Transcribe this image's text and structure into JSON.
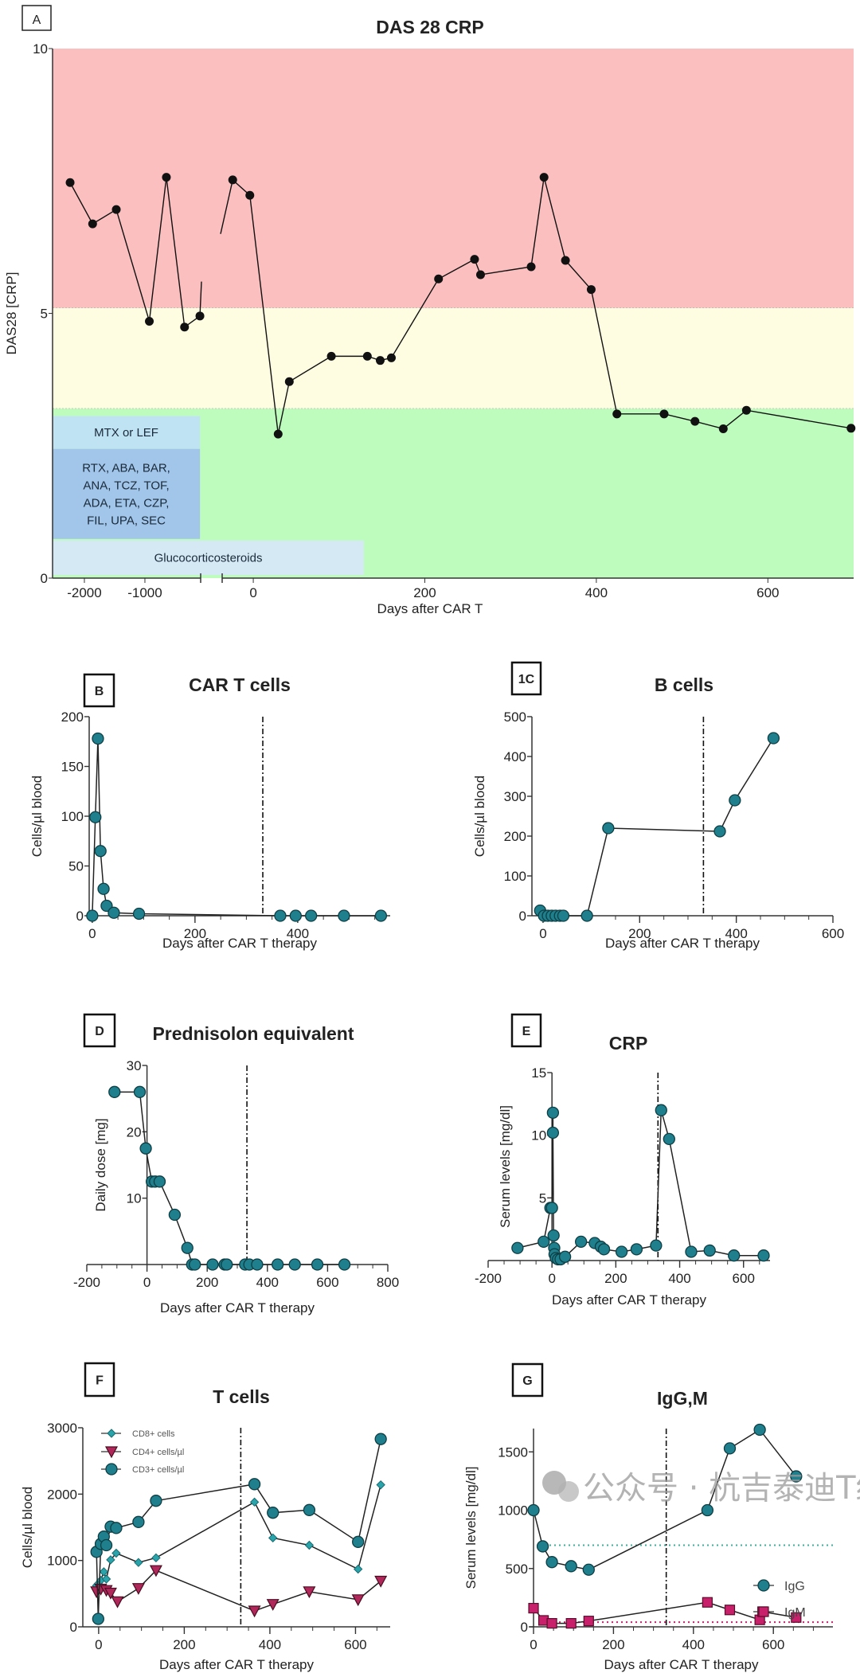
{
  "colors": {
    "teal": "#1f7f8c",
    "teal_edge": "#0e3f45",
    "pink": "#c8206a",
    "cd8": "#2aa3ab",
    "black": "#111111"
  },
  "watermark": "公众号 · 杭吉泰迪T细胞",
  "chart_data": [
    {
      "panel_label": "A",
      "type": "line",
      "title": "DAS 28 CRP",
      "xlabel": "Days after CAR T",
      "ylabel": "DAS28 [CRP]",
      "ylim": [
        0,
        10
      ],
      "yticks": [
        0,
        5,
        10
      ],
      "xticks": [
        -2000,
        -1000,
        0,
        200,
        400,
        600
      ],
      "x_axis_break": true,
      "x_axis_segments": [
        [
          -2526,
          -26
        ],
        [
          -40,
          700
        ]
      ],
      "zones": [
        {
          "from": 5.1,
          "to": 10,
          "color": "#fbbfbf"
        },
        {
          "from": 3.2,
          "to": 5.1,
          "color": "#fefde2"
        },
        {
          "from": 0,
          "to": 3.2,
          "color": "#befcbe"
        }
      ],
      "treatments": [
        {
          "lines": [
            "MTX or LEF"
          ],
          "x": [
            -2526,
            -90
          ],
          "y": [
            2.44,
            3.06
          ],
          "color": "#c0e3f4"
        },
        {
          "lines": [
            "RTX, ABA, BAR,",
            "ANA, TCZ, TOF,",
            "ADA, ETA, CZP,",
            "FIL, UPA, SEC"
          ],
          "x": [
            -2526,
            -90
          ],
          "y": [
            0.74,
            2.44
          ],
          "color": "#a2c5ea"
        },
        {
          "lines": [
            "Glucocorticosteroids"
          ],
          "x": [
            -2526,
            129
          ],
          "y": [
            0.06,
            0.71
          ],
          "color": "#d5e9f5"
        }
      ],
      "series": [
        {
          "points": [
            [
              -2236,
              7.47
            ],
            [
              -1864,
              6.69
            ],
            [
              -1473,
              6.96
            ],
            [
              -927,
              4.85
            ],
            [
              -645,
              7.57
            ],
            [
              -345,
              4.74
            ],
            [
              -91,
              4.95
            ]
          ]
        },
        {
          "points": [
            [
              -24,
              7.52
            ],
            [
              -4,
              7.23
            ],
            [
              29,
              2.72
            ],
            [
              42,
              3.71
            ],
            [
              91,
              4.19
            ],
            [
              133,
              4.19
            ],
            [
              148,
              4.11
            ],
            [
              161,
              4.16
            ],
            [
              216,
              5.65
            ],
            [
              258,
              6.02
            ],
            [
              265,
              5.73
            ],
            [
              324,
              5.88
            ],
            [
              339,
              7.57
            ],
            [
              364,
              6.0
            ],
            [
              394,
              5.45
            ],
            [
              424,
              3.1
            ],
            [
              479,
              3.1
            ],
            [
              515,
              2.96
            ],
            [
              548,
              2.82
            ],
            [
              575,
              3.17
            ],
            [
              697,
              2.83
            ]
          ]
        }
      ]
    },
    {
      "panel_label": "B",
      "type": "line",
      "title": "CAR T cells",
      "xlabel": "Days after CAR T therapy",
      "ylabel": "Cells/µl blood",
      "xlim": [
        -6,
        580
      ],
      "ylim": [
        0,
        200
      ],
      "xticks": [
        0,
        200,
        400
      ],
      "yticks": [
        0,
        50,
        100,
        150,
        200
      ],
      "vline": 332,
      "series": [
        {
          "marker": "circle",
          "points": [
            [
              0,
              0
            ],
            [
              6,
              99
            ],
            [
              11,
              178
            ],
            [
              16,
              65
            ],
            [
              22,
              27
            ],
            [
              28,
              10
            ],
            [
              42,
              3
            ],
            [
              91,
              2
            ],
            [
              366,
              0
            ],
            [
              396,
              0
            ],
            [
              426,
              0
            ],
            [
              490,
              0
            ],
            [
              562,
              0
            ]
          ]
        }
      ]
    },
    {
      "panel_label": "1C",
      "type": "line",
      "title": "B cells",
      "xlabel": "Days after CAR T therapy",
      "ylabel": "Cells/µl blood",
      "xlim": [
        -23,
        600
      ],
      "ylim": [
        0,
        500
      ],
      "xticks": [
        0,
        200,
        400,
        600
      ],
      "yticks": [
        0,
        100,
        200,
        300,
        400,
        500
      ],
      "vline": 332,
      "series": [
        {
          "marker": "circle",
          "points": [
            [
              -6,
              13
            ],
            [
              2,
              0
            ],
            [
              10,
              0
            ],
            [
              18,
              0
            ],
            [
              26,
              0
            ],
            [
              35,
              0
            ],
            [
              42,
              0
            ],
            [
              91,
              0
            ],
            [
              135,
              220
            ],
            [
              366,
              212
            ],
            [
              397,
              290
            ],
            [
              477,
              446
            ]
          ]
        }
      ]
    },
    {
      "panel_label": "D",
      "type": "line",
      "title": "Prednisolon equivalent",
      "xlabel": "Days after CAR T therapy",
      "ylabel": "Daily dose [mg]",
      "xlim": [
        -200,
        800
      ],
      "ylim": [
        0,
        30
      ],
      "xticks": [
        -200,
        0,
        200,
        400,
        600,
        800
      ],
      "yticks": [
        10,
        20,
        30
      ],
      "vline": 332,
      "series": [
        {
          "marker": "circle",
          "points": [
            [
              -108,
              26
            ],
            [
              -24,
              26
            ],
            [
              -4,
              17.5
            ],
            [
              16,
              12.5
            ],
            [
              27,
              12.5
            ],
            [
              42,
              12.5
            ],
            [
              92,
              7.5
            ],
            [
              134,
              2.5
            ],
            [
              150,
              0
            ],
            [
              159,
              0
            ],
            [
              218,
              0
            ],
            [
              258,
              0
            ],
            [
              265,
              0
            ],
            [
              326,
              0
            ],
            [
              340,
              0
            ],
            [
              366,
              0
            ],
            [
              434,
              0
            ],
            [
              491,
              0
            ],
            [
              566,
              0
            ],
            [
              656,
              0
            ]
          ]
        }
      ]
    },
    {
      "panel_label": "E",
      "type": "line",
      "title": "CRP",
      "xlabel": "Days after CAR T therapy",
      "ylabel": "Serum levels [mg/dl]",
      "xlim": [
        -200,
        683
      ],
      "ylim": [
        0,
        15
      ],
      "xticks": [
        -200,
        0,
        200,
        400,
        600
      ],
      "yticks": [
        5,
        10,
        15
      ],
      "vline": 332,
      "series": [
        {
          "marker": "circle",
          "points": [
            [
              -108,
              1.0
            ],
            [
              -26,
              1.5
            ],
            [
              -5,
              4.2
            ],
            [
              0,
              4.2
            ],
            [
              3,
              11.8
            ],
            [
              3,
              10.2
            ],
            [
              5,
              2.0
            ],
            [
              7,
              1.0
            ],
            [
              8,
              0.5
            ],
            [
              12,
              0.2
            ],
            [
              19,
              0.1
            ],
            [
              27,
              0.1
            ],
            [
              41,
              0.3
            ],
            [
              91,
              1.5
            ],
            [
              134,
              1.4
            ],
            [
              153,
              1.1
            ],
            [
              163,
              0.9
            ],
            [
              218,
              0.7
            ],
            [
              265,
              0.9
            ],
            [
              326,
              1.2
            ],
            [
              342,
              12.0
            ],
            [
              367,
              9.7
            ],
            [
              436,
              0.7
            ],
            [
              494,
              0.8
            ],
            [
              570,
              0.4
            ],
            [
              663,
              0.4
            ]
          ]
        }
      ]
    },
    {
      "panel_label": "F",
      "type": "line",
      "title": "T cells",
      "xlabel": "Days after CAR T therapy",
      "ylabel": "Cells/µl blood",
      "xlim": [
        -37,
        681
      ],
      "ylim": [
        0,
        3000
      ],
      "xticks": [
        0,
        200,
        400,
        600
      ],
      "yticks": [
        0,
        1000,
        2000,
        3000
      ],
      "vline": 332,
      "legend": "top-left",
      "series": [
        {
          "name": "CD8+ cells",
          "marker": "diamond",
          "color": "#2aa3ab",
          "points": [
            [
              -5,
              620
            ],
            [
              -1,
              650
            ],
            [
              5,
              700
            ],
            [
              12,
              830
            ],
            [
              18,
              720
            ],
            [
              28,
              1010
            ],
            [
              41,
              1110
            ],
            [
              93,
              970
            ],
            [
              134,
              1040
            ],
            [
              364,
              1880
            ],
            [
              407,
              1340
            ],
            [
              492,
              1230
            ],
            [
              606,
              870
            ],
            [
              659,
              2140
            ]
          ]
        },
        {
          "name": "CD4+ cells/µl",
          "marker": "triangle-down",
          "color": "#b0285a",
          "points": [
            [
              -5,
              530
            ],
            [
              5,
              570
            ],
            [
              18,
              550
            ],
            [
              28,
              510
            ],
            [
              44,
              380
            ],
            [
              93,
              580
            ],
            [
              134,
              850
            ],
            [
              364,
              240
            ],
            [
              407,
              340
            ],
            [
              492,
              530
            ],
            [
              606,
              410
            ],
            [
              659,
              690
            ]
          ]
        },
        {
          "name": "CD3+ cells/µl",
          "marker": "circle",
          "color": "#1f7f8c",
          "points": [
            [
              -5,
              1130
            ],
            [
              -1,
              120
            ],
            [
              5,
              1250
            ],
            [
              12,
              1360
            ],
            [
              18,
              1230
            ],
            [
              28,
              1510
            ],
            [
              41,
              1490
            ],
            [
              93,
              1580
            ],
            [
              134,
              1900
            ],
            [
              364,
              2150
            ],
            [
              407,
              1720
            ],
            [
              492,
              1760
            ],
            [
              606,
              1280
            ],
            [
              659,
              2830
            ]
          ]
        }
      ]
    },
    {
      "panel_label": "G",
      "type": "line",
      "title": "IgG,M",
      "xlabel": "Days after CAR T therapy",
      "ylabel": "Serum levels [mg/dl]",
      "xlim": [
        -10,
        749
      ],
      "ylim": [
        0,
        1700
      ],
      "xticks": [
        0,
        200,
        400,
        600
      ],
      "yticks": [
        0,
        500,
        1000,
        1500
      ],
      "vline": 332,
      "legend": "bottom-right",
      "reference_lines": [
        {
          "value": 700,
          "color": "#3fae9a"
        },
        {
          "value": 40,
          "color": "#c8206a"
        }
      ],
      "series": [
        {
          "name": "IgG",
          "marker": "circle",
          "color": "#1f7f8c",
          "points": [
            [
              0,
              1000
            ],
            [
              23,
              690
            ],
            [
              46,
              555
            ],
            [
              94,
              520
            ],
            [
              138,
              490
            ],
            [
              435,
              1000
            ],
            [
              491,
              1530
            ],
            [
              566,
              1690
            ],
            [
              657,
              1290
            ]
          ]
        },
        {
          "name": "IgM",
          "marker": "square",
          "color": "#c8206a",
          "points": [
            [
              0,
              160
            ],
            [
              25,
              55
            ],
            [
              46,
              30
            ],
            [
              94,
              30
            ],
            [
              138,
              50
            ],
            [
              435,
              210
            ],
            [
              491,
              145
            ],
            [
              566,
              60
            ],
            [
              573,
              130
            ],
            [
              657,
              80
            ]
          ]
        }
      ]
    }
  ]
}
